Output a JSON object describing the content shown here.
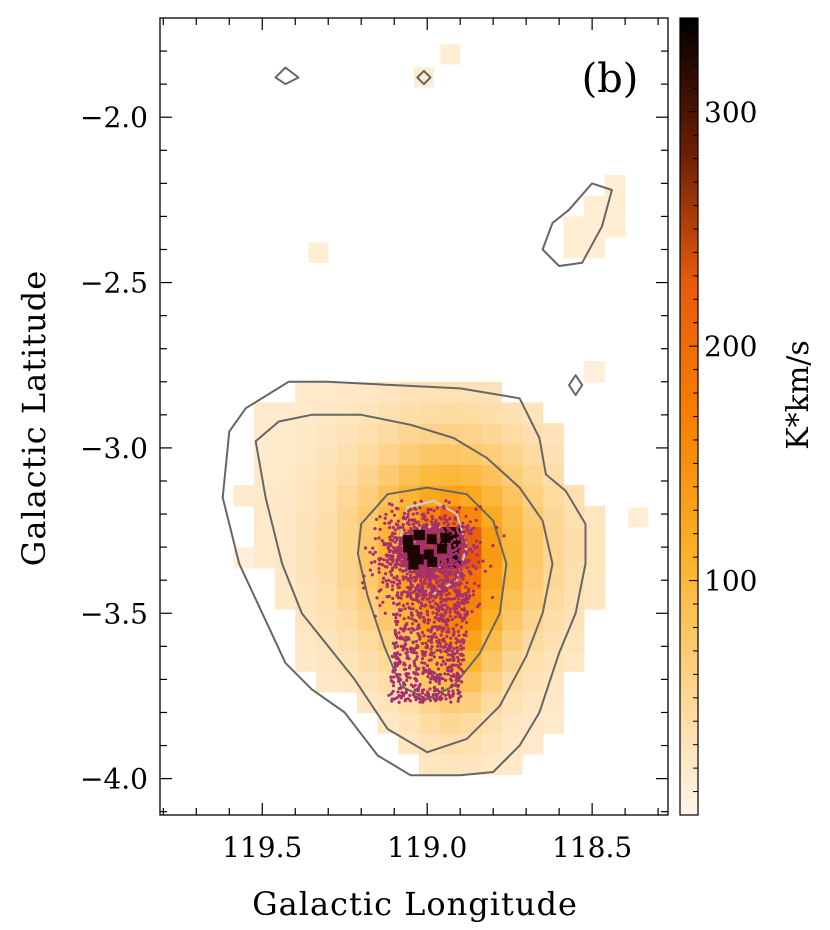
{
  "chart_data": {
    "type": "heatmap",
    "panel_label": "(b)",
    "xlabel": "Galactic Longitude",
    "ylabel": "Galactic Latitude",
    "x_reversed": true,
    "xlim": [
      119.81,
      118.27
    ],
    "ylim": [
      -4.11,
      -1.7
    ],
    "x_ticks": [
      119.5,
      119.0,
      118.5
    ],
    "x_tick_labels": [
      "119.5",
      "119.0",
      "118.5"
    ],
    "y_ticks": [
      -2.0,
      -2.5,
      -3.0,
      -3.5,
      -4.0
    ],
    "y_tick_labels": [
      "−2.0",
      "−2.5",
      "−3.0",
      "−3.5",
      "−4.0"
    ],
    "colorbar": {
      "label": "K*km/s",
      "range": [
        0,
        340
      ],
      "ticks": [
        100,
        200,
        300
      ],
      "tick_labels": [
        "100",
        "200",
        "300"
      ],
      "colormap": [
        "#fff5eb",
        "#fdd38a",
        "#fbb025",
        "#f77f00",
        "#e85b0c",
        "#6b1d05",
        "#000000"
      ]
    },
    "emission_peak": {
      "l": 119.0,
      "b": -3.3
    },
    "contours": [
      {
        "level": 1,
        "points": [
          [
            119.6,
            -2.95
          ],
          [
            119.55,
            -2.88
          ],
          [
            119.42,
            -2.8
          ],
          [
            119.3,
            -2.8
          ],
          [
            119.1,
            -2.81
          ],
          [
            118.9,
            -2.82
          ],
          [
            118.72,
            -2.85
          ],
          [
            118.66,
            -2.97
          ],
          [
            118.64,
            -3.08
          ],
          [
            118.58,
            -3.13
          ],
          [
            118.52,
            -3.23
          ],
          [
            118.52,
            -3.35
          ],
          [
            118.55,
            -3.5
          ],
          [
            118.6,
            -3.62
          ],
          [
            118.66,
            -3.8
          ],
          [
            118.72,
            -3.9
          ],
          [
            118.8,
            -3.98
          ],
          [
            118.9,
            -3.99
          ],
          [
            119.05,
            -3.99
          ],
          [
            119.15,
            -3.93
          ],
          [
            119.25,
            -3.8
          ],
          [
            119.35,
            -3.73
          ],
          [
            119.43,
            -3.65
          ],
          [
            119.5,
            -3.5
          ],
          [
            119.57,
            -3.35
          ],
          [
            119.62,
            -3.15
          ]
        ]
      },
      {
        "level": 2,
        "points": [
          [
            119.52,
            -2.98
          ],
          [
            119.45,
            -2.92
          ],
          [
            119.35,
            -2.9
          ],
          [
            119.2,
            -2.9
          ],
          [
            119.05,
            -2.93
          ],
          [
            118.92,
            -2.97
          ],
          [
            118.82,
            -3.03
          ],
          [
            118.72,
            -3.12
          ],
          [
            118.65,
            -3.22
          ],
          [
            118.62,
            -3.35
          ],
          [
            118.65,
            -3.5
          ],
          [
            118.7,
            -3.63
          ],
          [
            118.78,
            -3.78
          ],
          [
            118.88,
            -3.88
          ],
          [
            119.0,
            -3.92
          ],
          [
            119.12,
            -3.85
          ],
          [
            119.22,
            -3.7
          ],
          [
            119.3,
            -3.6
          ],
          [
            119.38,
            -3.5
          ],
          [
            119.44,
            -3.35
          ],
          [
            119.49,
            -3.15
          ]
        ]
      },
      {
        "level": 3,
        "points": [
          [
            119.2,
            -3.23
          ],
          [
            119.12,
            -3.14
          ],
          [
            119.0,
            -3.12
          ],
          [
            118.88,
            -3.14
          ],
          [
            118.8,
            -3.22
          ],
          [
            118.76,
            -3.35
          ],
          [
            118.78,
            -3.5
          ],
          [
            118.84,
            -3.62
          ],
          [
            118.92,
            -3.72
          ],
          [
            119.0,
            -3.76
          ],
          [
            119.08,
            -3.72
          ],
          [
            119.13,
            -3.6
          ],
          [
            119.18,
            -3.45
          ],
          [
            119.21,
            -3.32
          ]
        ]
      },
      {
        "level": 4,
        "points": [
          [
            119.06,
            -3.18
          ],
          [
            118.98,
            -3.16
          ],
          [
            118.91,
            -3.2
          ],
          [
            118.88,
            -3.3
          ],
          [
            118.91,
            -3.4
          ],
          [
            118.98,
            -3.44
          ],
          [
            119.05,
            -3.41
          ],
          [
            119.09,
            -3.31
          ]
        ]
      },
      {
        "level": 5,
        "points": [
          [
            119.02,
            -3.24
          ],
          [
            118.96,
            -3.24
          ],
          [
            118.93,
            -3.3
          ],
          [
            118.96,
            -3.36
          ],
          [
            119.02,
            -3.36
          ],
          [
            119.04,
            -3.3
          ]
        ]
      },
      {
        "level": 1,
        "points": [
          [
            118.57,
            -2.28
          ],
          [
            118.5,
            -2.2
          ],
          [
            118.44,
            -2.22
          ],
          [
            118.47,
            -2.33
          ],
          [
            118.53,
            -2.44
          ],
          [
            118.6,
            -2.45
          ],
          [
            118.65,
            -2.4
          ],
          [
            118.62,
            -2.32
          ]
        ]
      },
      {
        "level": 1,
        "points": [
          [
            119.39,
            -1.88
          ],
          [
            119.43,
            -1.85
          ],
          [
            119.46,
            -1.88
          ],
          [
            119.43,
            -1.9
          ]
        ]
      },
      {
        "level": 1,
        "points": [
          [
            118.53,
            -2.81
          ],
          [
            118.55,
            -2.78
          ],
          [
            118.57,
            -2.81
          ],
          [
            118.55,
            -2.84
          ]
        ]
      },
      {
        "level": 1,
        "points": [
          [
            118.99,
            -1.88
          ],
          [
            119.01,
            -1.86
          ],
          [
            119.03,
            -1.88
          ],
          [
            119.01,
            -1.9
          ]
        ]
      }
    ],
    "scatter": {
      "series_color": "#a8306a",
      "center": {
        "l": 119.0,
        "b": -3.35
      }
    }
  }
}
